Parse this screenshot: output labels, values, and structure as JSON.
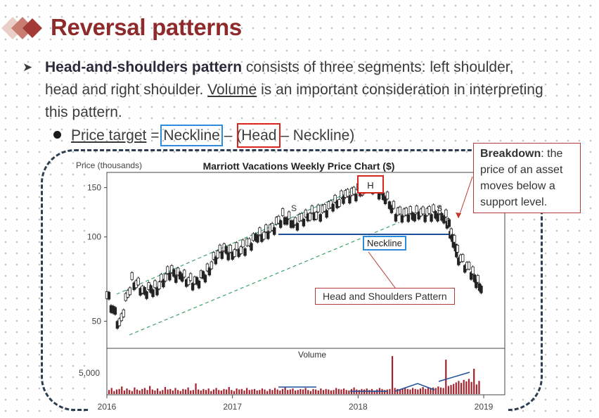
{
  "slide": {
    "title": "Reversal patterns",
    "bullet": {
      "bold": "Head-and-shoulders pattern",
      "text1": " consists of three segments: left shoulder, head and right shoulder. ",
      "underline": "Volume",
      "text2": " is an important consideration in interpreting this pattern."
    },
    "sub": {
      "price_target": "Price target",
      "eq": " = ",
      "neckline1": "Neckline",
      "minus1": " – (",
      "head": "Head",
      "minus2": " – Neckline)"
    },
    "callout": {
      "bold": "Breakdown",
      "text": ": the price of an asset moves below a support level."
    },
    "labels": {
      "neckline": "Neckline",
      "hs": "Head and Shoulders Pattern",
      "h": "H"
    },
    "colors": {
      "title": "#8e2a2a",
      "blue_box": "#2f8cdc",
      "red_box": "#d9261c",
      "bars": "#a3222c",
      "frame": "#2c3e50"
    }
  },
  "chart_data": {
    "type": "line",
    "title": "Marriott Vacations Weekly Price Chart ($)",
    "ylabel": "Price (thousands)",
    "ytick_labels": [
      "150",
      "100",
      "50"
    ],
    "ylim": [
      40,
      170
    ],
    "log_scale": true,
    "xtick_labels": [
      "2016",
      "2017",
      "2018",
      "2019"
    ],
    "x": [
      2016.0,
      2016.1,
      2016.2,
      2016.3,
      2016.4,
      2016.5,
      2016.6,
      2016.7,
      2016.8,
      2016.9,
      2017.0,
      2017.1,
      2017.2,
      2017.3,
      2017.4,
      2017.5,
      2017.6,
      2017.7,
      2017.8,
      2017.9,
      2018.0,
      2018.1,
      2018.2,
      2018.3,
      2018.4,
      2018.5,
      2018.6,
      2018.7,
      2018.75,
      2018.8,
      2018.9,
      2018.98
    ],
    "series": [
      {
        "values": [
          62,
          48,
          70,
          64,
          66,
          75,
          72,
          68,
          75,
          90,
          88,
          92,
          100,
          105,
          118,
          112,
          120,
          122,
          130,
          140,
          145,
          155,
          142,
          122,
          120,
          121,
          122,
          118,
          100,
          85,
          75,
          65
        ]
      }
    ],
    "annotations": [
      "S",
      "H",
      "S",
      "Neckline",
      "Head and Shoulders Pattern"
    ],
    "volume": {
      "label": "Volume",
      "ytick_labels": [
        "5,000"
      ],
      "values": [
        0.8,
        1.2,
        0.6,
        0.9,
        1.0,
        1.5,
        0.7,
        1.1,
        0.8,
        0.6,
        1.3,
        0.9,
        0.7,
        1.0,
        1.2,
        0.8,
        1.6,
        0.9,
        0.7,
        1.1,
        0.6,
        0.8,
        1.4,
        0.9,
        1.0,
        0.7,
        1.2,
        0.8,
        0.6,
        1.0,
        0.9,
        1.3,
        0.7,
        0.8,
        2.1,
        0.9,
        0.7,
        1.0,
        0.8,
        1.1,
        0.6,
        0.9,
        1.2,
        0.8,
        0.7,
        1.0,
        0.9,
        1.4,
        0.8,
        0.6,
        1.1,
        0.9,
        1.0,
        0.7,
        1.2,
        0.8,
        0.9,
        1.0,
        0.7,
        0.8,
        1.1,
        0.9,
        0.6,
        1.0,
        0.8,
        1.2,
        0.9,
        0.7,
        1.0,
        1.3,
        0.8,
        0.9,
        1.1,
        0.7,
        0.8,
        1.0,
        0.9,
        1.2,
        0.8,
        0.6,
        1.0,
        0.9,
        0.7,
        1.1,
        0.8,
        1.0,
        0.9,
        0.7,
        0.8,
        1.2,
        1.0,
        0.9,
        1.1,
        0.8,
        0.7,
        1.0,
        1.3,
        0.9,
        0.8,
        1.0,
        0.9,
        1.1,
        0.8,
        1.0,
        0.7,
        0.9,
        1.2,
        1.0,
        0.8,
        0.9,
        1.0,
        7.5,
        1.2,
        1.0,
        0.9,
        1.1,
        1.3,
        1.0,
        0.9,
        1.2,
        1.0,
        0.9,
        1.1,
        1.4,
        1.0,
        1.2,
        1.1,
        1.3,
        1.2,
        1.5,
        1.3,
        1.2,
        6.8,
        1.6,
        1.8,
        2.0,
        2.3,
        2.6,
        2.2,
        2.8,
        2.5,
        3.0,
        2.4,
        5.0,
        1.9,
        2.6
      ]
    }
  }
}
